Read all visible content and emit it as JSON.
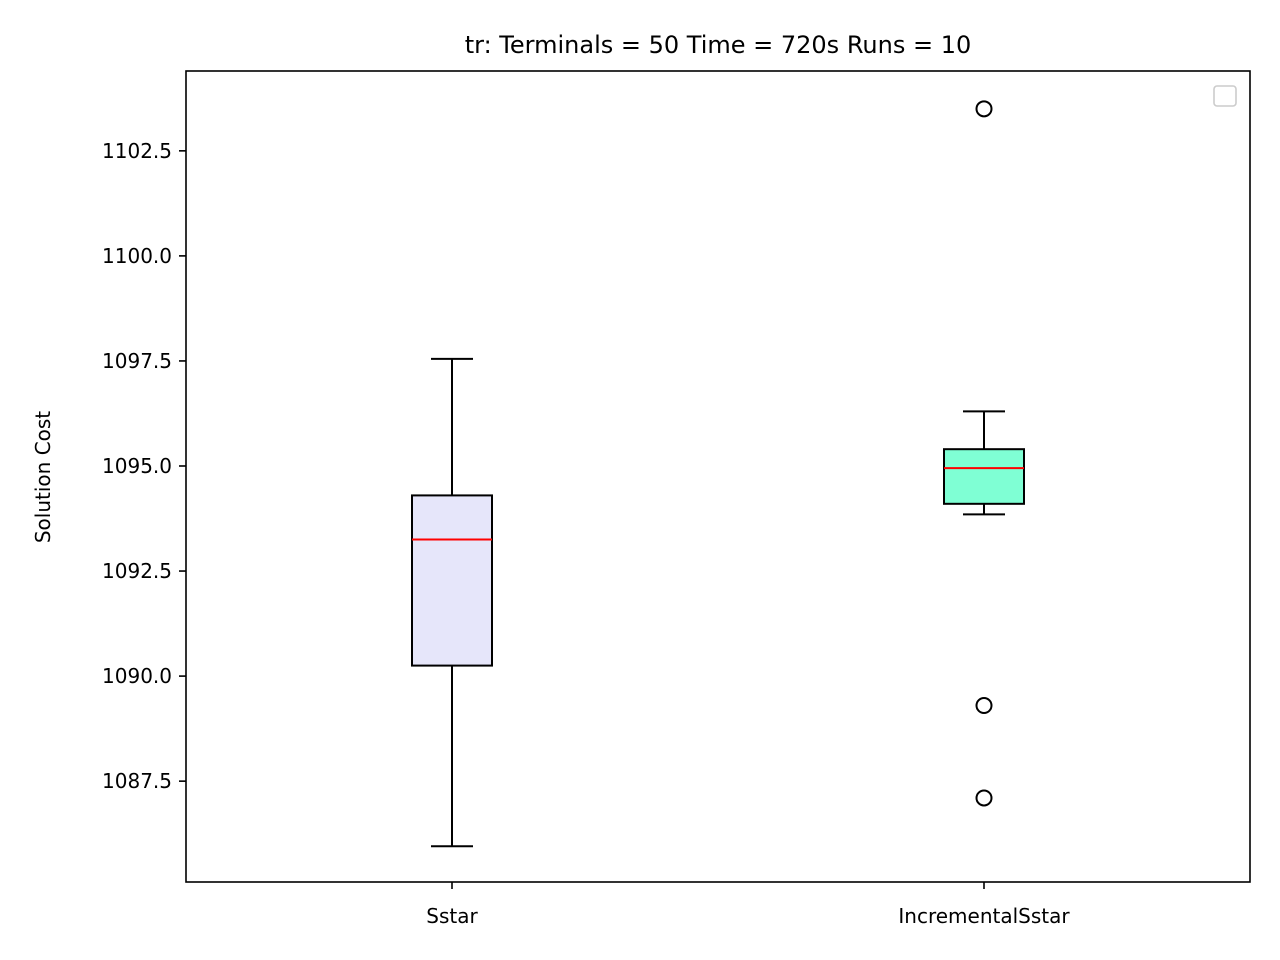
{
  "chart_data": {
    "type": "box",
    "title": "tr:  Terminals = 50  Time = 720s  Runs = 10",
    "xlabel": "",
    "ylabel": "Solution Cost",
    "categories": [
      "Sstar",
      "IncrementalSstar"
    ],
    "ylim": [
      1085.1,
      1104.4
    ],
    "yticks": [
      "1087.5",
      "1090.0",
      "1092.5",
      "1095.0",
      "1097.5",
      "1100.0",
      "1102.5"
    ],
    "grid": false,
    "legend": {
      "placement": "top-right",
      "entries": []
    },
    "boxes": [
      {
        "category": "Sstar",
        "whisker_low": 1085.95,
        "q1": 1090.25,
        "median": 1093.25,
        "q3": 1094.3,
        "whisker_high": 1097.55,
        "outliers": [],
        "fill": "#e6e6fa"
      },
      {
        "category": "IncrementalSstar",
        "whisker_low": 1093.85,
        "q1": 1094.1,
        "median": 1094.95,
        "q3": 1095.4,
        "whisker_high": 1096.3,
        "outliers": [
          1103.5,
          1089.3,
          1087.1
        ],
        "fill": "#7fffd4"
      }
    ],
    "colors": {
      "median": "#ff0000",
      "box_edge": "#000000"
    }
  }
}
